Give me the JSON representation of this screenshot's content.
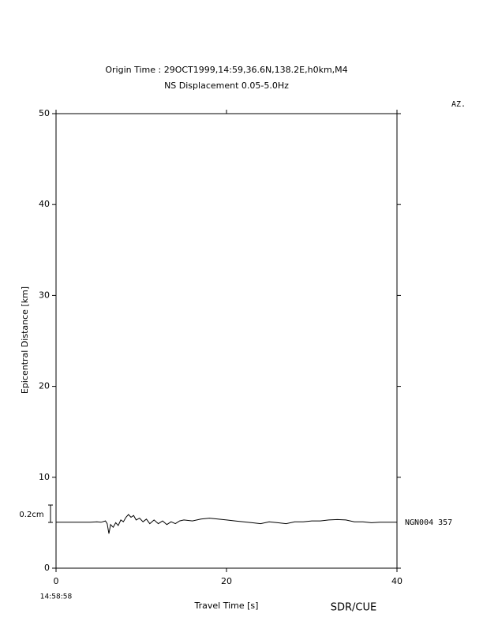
{
  "chart_data": {
    "type": "line",
    "title": "Origin Time : 29OCT1999,14:59,36.6N,138.2E,h0km,M4",
    "subtitle": "NS Displacement 0.05-5.0Hz",
    "az_label": "AZ.",
    "y_label": "Epicentral Distance [km]",
    "x_label": "Travel Time [s]",
    "start_time": "14:58:58",
    "source": "SDR/CUE",
    "scale_label": "0.2cm",
    "xlim": [
      0,
      40
    ],
    "xticks": [
      0,
      20,
      40
    ],
    "ylim": [
      0,
      50
    ],
    "yticks": [
      0,
      10,
      20,
      30,
      40,
      50
    ],
    "series": [
      {
        "name": "NGN004 357",
        "color": "#000000",
        "x": [
          0,
          2,
          4,
          4.8,
          5.3,
          5.8,
          6.0,
          6.2,
          6.4,
          6.7,
          7.0,
          7.3,
          7.6,
          7.9,
          8.2,
          8.5,
          8.8,
          9.1,
          9.4,
          9.8,
          10.2,
          10.6,
          11.0,
          11.5,
          12.0,
          12.5,
          13.0,
          13.5,
          14.0,
          14.5,
          15.0,
          16.0,
          17.0,
          18.0,
          19.0,
          20.0,
          21.0,
          22.0,
          23.0,
          24.0,
          25.0,
          26.0,
          27.0,
          28.0,
          29.0,
          30.0,
          31.0,
          32.0,
          33.0,
          34.0,
          35.0,
          36.0,
          37.0,
          38.0,
          40
        ],
        "values": [
          5.05,
          5.05,
          5.05,
          5.1,
          5.05,
          5.2,
          4.9,
          3.8,
          4.8,
          4.5,
          5.0,
          4.7,
          5.3,
          5.1,
          5.6,
          5.9,
          5.6,
          5.8,
          5.3,
          5.5,
          5.1,
          5.4,
          4.9,
          5.3,
          4.9,
          5.2,
          4.8,
          5.1,
          4.9,
          5.2,
          5.3,
          5.2,
          5.4,
          5.5,
          5.4,
          5.3,
          5.2,
          5.1,
          5.0,
          4.9,
          5.1,
          5.0,
          4.9,
          5.1,
          5.1,
          5.2,
          5.2,
          5.3,
          5.35,
          5.3,
          5.1,
          5.1,
          5.0,
          5.05,
          5.05
        ]
      }
    ]
  }
}
